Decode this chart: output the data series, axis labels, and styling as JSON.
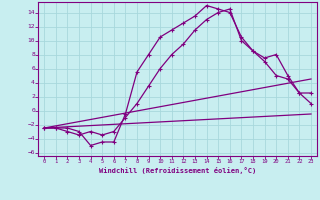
{
  "title": "Windchill (Refroidissement éolien,°C)",
  "bg_color": "#c8eef0",
  "line_color": "#800080",
  "grid_color": "#a8d8dc",
  "xlim": [
    -0.5,
    23.5
  ],
  "ylim": [
    -6.5,
    15.5
  ],
  "xticks": [
    0,
    1,
    2,
    3,
    4,
    5,
    6,
    7,
    8,
    9,
    10,
    11,
    12,
    13,
    14,
    15,
    16,
    17,
    18,
    19,
    20,
    21,
    22,
    23
  ],
  "yticks": [
    -6,
    -4,
    -2,
    0,
    2,
    4,
    6,
    8,
    10,
    12,
    14
  ],
  "line1_x": [
    0,
    1,
    2,
    3,
    4,
    5,
    6,
    7,
    8,
    9,
    10,
    11,
    12,
    13,
    14,
    15,
    16,
    17,
    18,
    19,
    20,
    21,
    22,
    23
  ],
  "line1_y": [
    -2.5,
    -2.5,
    -2.5,
    -3.0,
    -5.0,
    -4.5,
    -4.5,
    -0.5,
    5.5,
    8.0,
    10.5,
    11.5,
    12.5,
    13.5,
    15.0,
    14.5,
    14.0,
    10.5,
    8.5,
    7.0,
    5.0,
    4.5,
    2.5,
    1.0
  ],
  "line2_x": [
    0,
    1,
    2,
    3,
    4,
    5,
    6,
    7,
    8,
    9,
    10,
    11,
    12,
    13,
    14,
    15,
    16,
    17,
    18,
    19,
    20,
    21,
    22,
    23
  ],
  "line2_y": [
    -2.5,
    -2.5,
    -3.0,
    -3.5,
    -3.0,
    -3.5,
    -3.0,
    -1.0,
    1.0,
    3.5,
    6.0,
    8.0,
    9.5,
    11.5,
    13.0,
    14.0,
    14.5,
    10.0,
    8.5,
    7.5,
    8.0,
    5.0,
    2.5,
    2.5
  ],
  "line3_x": [
    0,
    23
  ],
  "line3_y": [
    -2.5,
    -0.5
  ],
  "line4_x": [
    0,
    23
  ],
  "line4_y": [
    -2.5,
    4.5
  ]
}
